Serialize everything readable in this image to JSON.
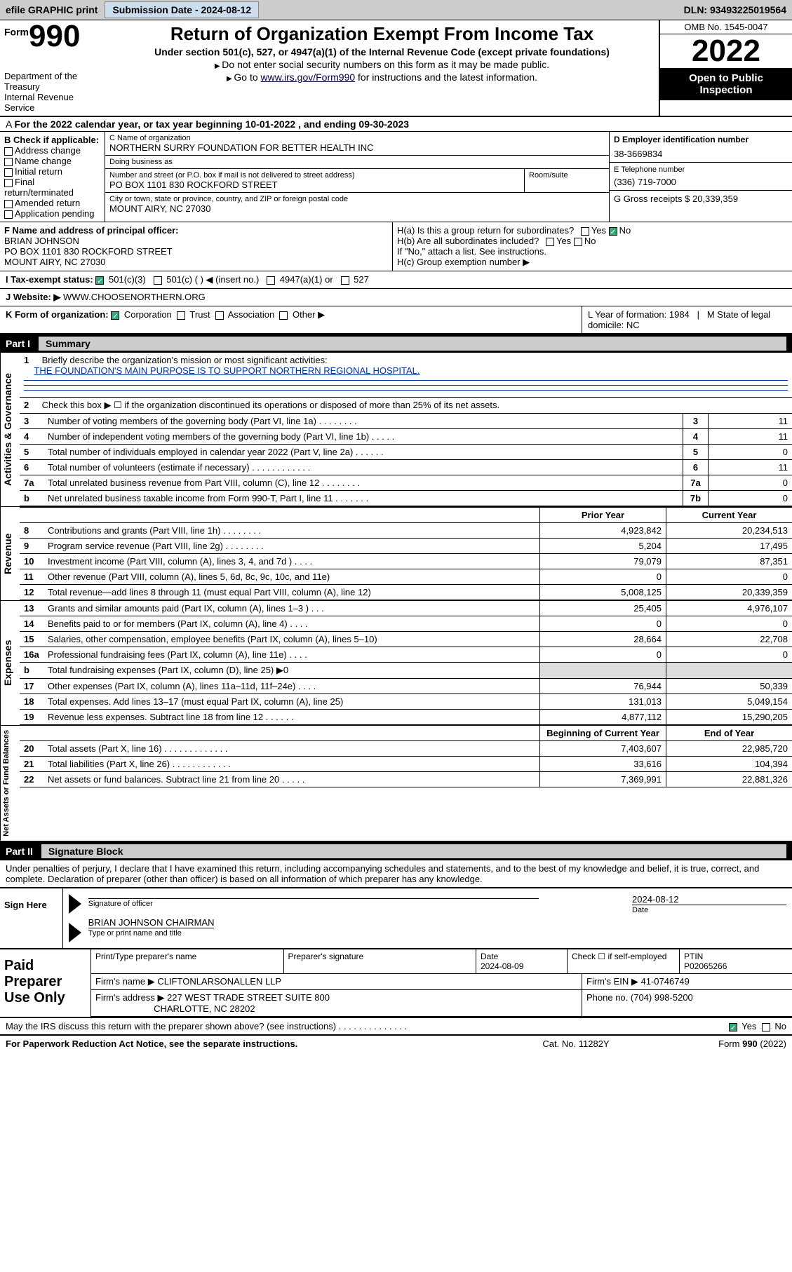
{
  "topbar": {
    "efile": "efile GRAPHIC print",
    "submission_label": "Submission Date - 2024-08-12",
    "dln": "DLN: 93493225019564"
  },
  "header": {
    "form_word": "Form",
    "form_number": "990",
    "dept": "Department of the Treasury\nInternal Revenue Service",
    "title": "Return of Organization Exempt From Income Tax",
    "subtitle": "Under section 501(c), 527, or 4947(a)(1) of the Internal Revenue Code (except private foundations)",
    "line1": "Do not enter social security numbers on this form as it may be made public.",
    "line2_prefix": "Go to ",
    "line2_link": "www.irs.gov/Form990",
    "line2_suffix": " for instructions and the latest information.",
    "omb": "OMB No. 1545-0047",
    "year": "2022",
    "inspection": "Open to Public Inspection"
  },
  "period": "For the 2022 calendar year, or tax year beginning 10-01-2022  , and ending 09-30-2023",
  "sectionB": {
    "label": "B Check if applicable:",
    "items": [
      "Address change",
      "Name change",
      "Initial return",
      "Final return/terminated",
      "Amended return",
      "Application pending"
    ]
  },
  "sectionC": {
    "name_lbl": "C Name of organization",
    "name": "NORTHERN SURRY FOUNDATION FOR BETTER HEALTH INC",
    "dba_lbl": "Doing business as",
    "street_lbl": "Number and street (or P.O. box if mail is not delivered to street address)",
    "suite_lbl": "Room/suite",
    "street": "PO BOX 1101 830 ROCKFORD STREET",
    "city_lbl": "City or town, state or province, country, and ZIP or foreign postal code",
    "city": "MOUNT AIRY, NC  27030"
  },
  "sectionD": {
    "ein_lbl": "D Employer identification number",
    "ein": "38-3669834",
    "phone_lbl": "E Telephone number",
    "phone": "(336) 719-7000",
    "gross_lbl": "G Gross receipts $ ",
    "gross": "20,339,359"
  },
  "sectionF": {
    "label": "F  Name and address of principal officer:",
    "name": "BRIAN JOHNSON",
    "addr1": "PO BOX 1101 830 ROCKFORD STREET",
    "addr2": "MOUNT AIRY, NC  27030"
  },
  "sectionH": {
    "ha": "H(a)  Is this a group return for subordinates?",
    "hb": "H(b)  Are all subordinates included?",
    "hb_note": "If \"No,\" attach a list. See instructions.",
    "hc": "H(c)  Group exemption number ▶"
  },
  "rowI": {
    "label": "I   Tax-exempt status:",
    "opts": [
      "501(c)(3)",
      "501(c) (  ) ◀ (insert no.)",
      "4947(a)(1) or",
      "527"
    ]
  },
  "rowJ": {
    "label": "J   Website: ▶ ",
    "value": "WWW.CHOOSENORTHERN.ORG"
  },
  "rowK": {
    "label": "K Form of organization:",
    "opts": [
      "Corporation",
      "Trust",
      "Association",
      "Other ▶"
    ]
  },
  "rowLM": {
    "L": "L Year of formation: 1984",
    "M": "M State of legal domicile: NC"
  },
  "part1": {
    "label": "Part I",
    "title": "Summary",
    "line1_lbl": "1",
    "line1_text": "Briefly describe the organization's mission or most significant activities:",
    "mission": "THE FOUNDATION'S MAIN PURPOSE IS TO SUPPORT NORTHERN REGIONAL HOSPITAL.",
    "line2": "Check this box ▶ ☐  if the organization discontinued its operations or disposed of more than 25% of its net assets.",
    "gov_rows": [
      {
        "n": "3",
        "t": "Number of voting members of the governing body (Part VI, line 1a)   .    .    .    .    .    .    .    .",
        "box": "3",
        "v": "11"
      },
      {
        "n": "4",
        "t": "Number of independent voting members of the governing body (Part VI, line 1b)   .    .    .    .    .",
        "box": "4",
        "v": "11"
      },
      {
        "n": "5",
        "t": "Total number of individuals employed in calendar year 2022 (Part V, line 2a)   .    .    .    .    .    .",
        "box": "5",
        "v": "0"
      },
      {
        "n": "6",
        "t": "Total number of volunteers (estimate if necessary)   .    .    .    .    .    .    .    .    .    .    .    .",
        "box": "6",
        "v": "11"
      },
      {
        "n": "7a",
        "t": "Total unrelated business revenue from Part VIII, column (C), line 12   .    .    .    .    .    .    .    .",
        "box": "7a",
        "v": "0"
      },
      {
        "n": "b",
        "t": "Net unrelated business taxable income from Form 990-T, Part I, line 11   .    .    .    .    .    .    .",
        "box": "7b",
        "v": "0"
      }
    ],
    "col_py": "Prior Year",
    "col_cy": "Current Year",
    "rev_rows": [
      {
        "n": "8",
        "t": "Contributions and grants (Part VIII, line 1h)   .    .    .    .    .    .    .    .",
        "py": "4,923,842",
        "cy": "20,234,513"
      },
      {
        "n": "9",
        "t": "Program service revenue (Part VIII, line 2g)   .    .    .    .    .    .    .    .",
        "py": "5,204",
        "cy": "17,495"
      },
      {
        "n": "10",
        "t": "Investment income (Part VIII, column (A), lines 3, 4, and 7d )   .    .    .    .",
        "py": "79,079",
        "cy": "87,351"
      },
      {
        "n": "11",
        "t": "Other revenue (Part VIII, column (A), lines 5, 6d, 8c, 9c, 10c, and 11e)",
        "py": "0",
        "cy": "0"
      },
      {
        "n": "12",
        "t": "Total revenue—add lines 8 through 11 (must equal Part VIII, column (A), line 12)",
        "py": "5,008,125",
        "cy": "20,339,359"
      }
    ],
    "exp_rows": [
      {
        "n": "13",
        "t": "Grants and similar amounts paid (Part IX, column (A), lines 1–3 )   .    .    .",
        "py": "25,405",
        "cy": "4,976,107"
      },
      {
        "n": "14",
        "t": "Benefits paid to or for members (Part IX, column (A), line 4)   .    .    .    .",
        "py": "0",
        "cy": "0"
      },
      {
        "n": "15",
        "t": "Salaries, other compensation, employee benefits (Part IX, column (A), lines 5–10)",
        "py": "28,664",
        "cy": "22,708"
      },
      {
        "n": "16a",
        "t": "Professional fundraising fees (Part IX, column (A), line 11e)   .    .    .    .",
        "py": "0",
        "cy": "0"
      },
      {
        "n": "b",
        "t": "Total fundraising expenses (Part IX, column (D), line 25) ▶0",
        "py": "",
        "cy": "",
        "shaded": true
      },
      {
        "n": "17",
        "t": "Other expenses (Part IX, column (A), lines 11a–11d, 11f–24e)   .    .    .    .",
        "py": "76,944",
        "cy": "50,339"
      },
      {
        "n": "18",
        "t": "Total expenses. Add lines 13–17 (must equal Part IX, column (A), line 25)",
        "py": "131,013",
        "cy": "5,049,154"
      },
      {
        "n": "19",
        "t": "Revenue less expenses. Subtract line 18 from line 12   .    .    .    .    .    .",
        "py": "4,877,112",
        "cy": "15,290,205"
      }
    ],
    "col_boy": "Beginning of Current Year",
    "col_eoy": "End of Year",
    "net_rows": [
      {
        "n": "20",
        "t": "Total assets (Part X, line 16)   .    .    .    .    .    .    .    .    .    .    .    .    .",
        "py": "7,403,607",
        "cy": "22,985,720"
      },
      {
        "n": "21",
        "t": "Total liabilities (Part X, line 26)   .    .    .    .    .    .    .    .    .    .    .    .",
        "py": "33,616",
        "cy": "104,394"
      },
      {
        "n": "22",
        "t": "Net assets or fund balances. Subtract line 21 from line 20   .    .    .    .    .",
        "py": "7,369,991",
        "cy": "22,881,326"
      }
    ]
  },
  "part2": {
    "label": "Part II",
    "title": "Signature Block",
    "declaration": "Under penalties of perjury, I declare that I have examined this return, including accompanying schedules and statements, and to the best of my knowledge and belief, it is true, correct, and complete. Declaration of preparer (other than officer) is based on all information of which preparer has any knowledge.",
    "sign_here": "Sign Here",
    "sig_officer": "Signature of officer",
    "sig_date_lbl": "Date",
    "sig_date": "2024-08-12",
    "sig_name": "BRIAN JOHNSON  CHAIRMAN",
    "sig_name_lbl": "Type or print name and title",
    "paid": "Paid Preparer Use Only",
    "prep_name_lbl": "Print/Type preparer's name",
    "prep_sig_lbl": "Preparer's signature",
    "prep_date_lbl": "Date",
    "prep_date": "2024-08-09",
    "prep_self_lbl": "Check ☐ if self-employed",
    "ptin_lbl": "PTIN",
    "ptin": "P02065266",
    "firm_name_lbl": "Firm's name    ▶ ",
    "firm_name": "CLIFTONLARSONALLEN LLP",
    "firm_ein_lbl": "Firm's EIN ▶ ",
    "firm_ein": "41-0746749",
    "firm_addr_lbl": "Firm's address ▶ ",
    "firm_addr1": "227 WEST TRADE STREET SUITE 800",
    "firm_addr2": "CHARLOTTE, NC  28202",
    "firm_phone_lbl": "Phone no. ",
    "firm_phone": "(704) 998-5200",
    "discuss": "May the IRS discuss this return with the preparer shown above? (see instructions)   .    .    .    .    .    .    .    .    .    .    .    .    .    ."
  },
  "footer": {
    "left": "For Paperwork Reduction Act Notice, see the separate instructions.",
    "mid": "Cat. No. 11282Y",
    "right": "Form 990 (2022)"
  },
  "tabs": {
    "gov": "Activities & Governance",
    "rev": "Revenue",
    "exp": "Expenses",
    "net": "Net Assets or Fund Balances"
  },
  "yes": "Yes",
  "no": "No"
}
